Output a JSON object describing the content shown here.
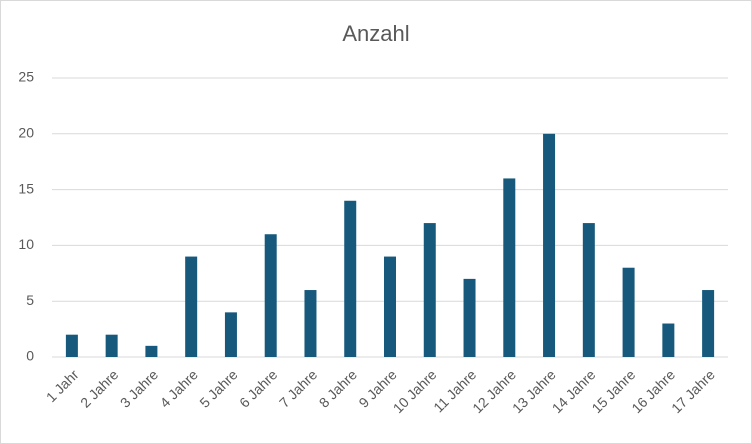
{
  "chart_data": {
    "type": "bar",
    "title": "Anzahl",
    "categories": [
      "1 Jahr",
      "2 Jahre",
      "3 Jahre",
      "4 Jahre",
      "5 Jahre",
      "6 Jahre",
      "7 Jahre",
      "8 Jahre",
      "9 Jahre",
      "10 Jahre",
      "11 Jahre",
      "12 Jahre",
      "13 Jahre",
      "14 Jahre",
      "15 Jahre",
      "16 Jahre",
      "17 Jahre"
    ],
    "values": [
      2,
      2,
      1,
      9,
      4,
      11,
      6,
      14,
      9,
      12,
      7,
      16,
      20,
      12,
      8,
      3,
      6
    ],
    "color": "#17597c",
    "ylim": [
      0,
      25
    ],
    "yticks": [
      0,
      5,
      10,
      15,
      20,
      25
    ],
    "grid": true
  }
}
